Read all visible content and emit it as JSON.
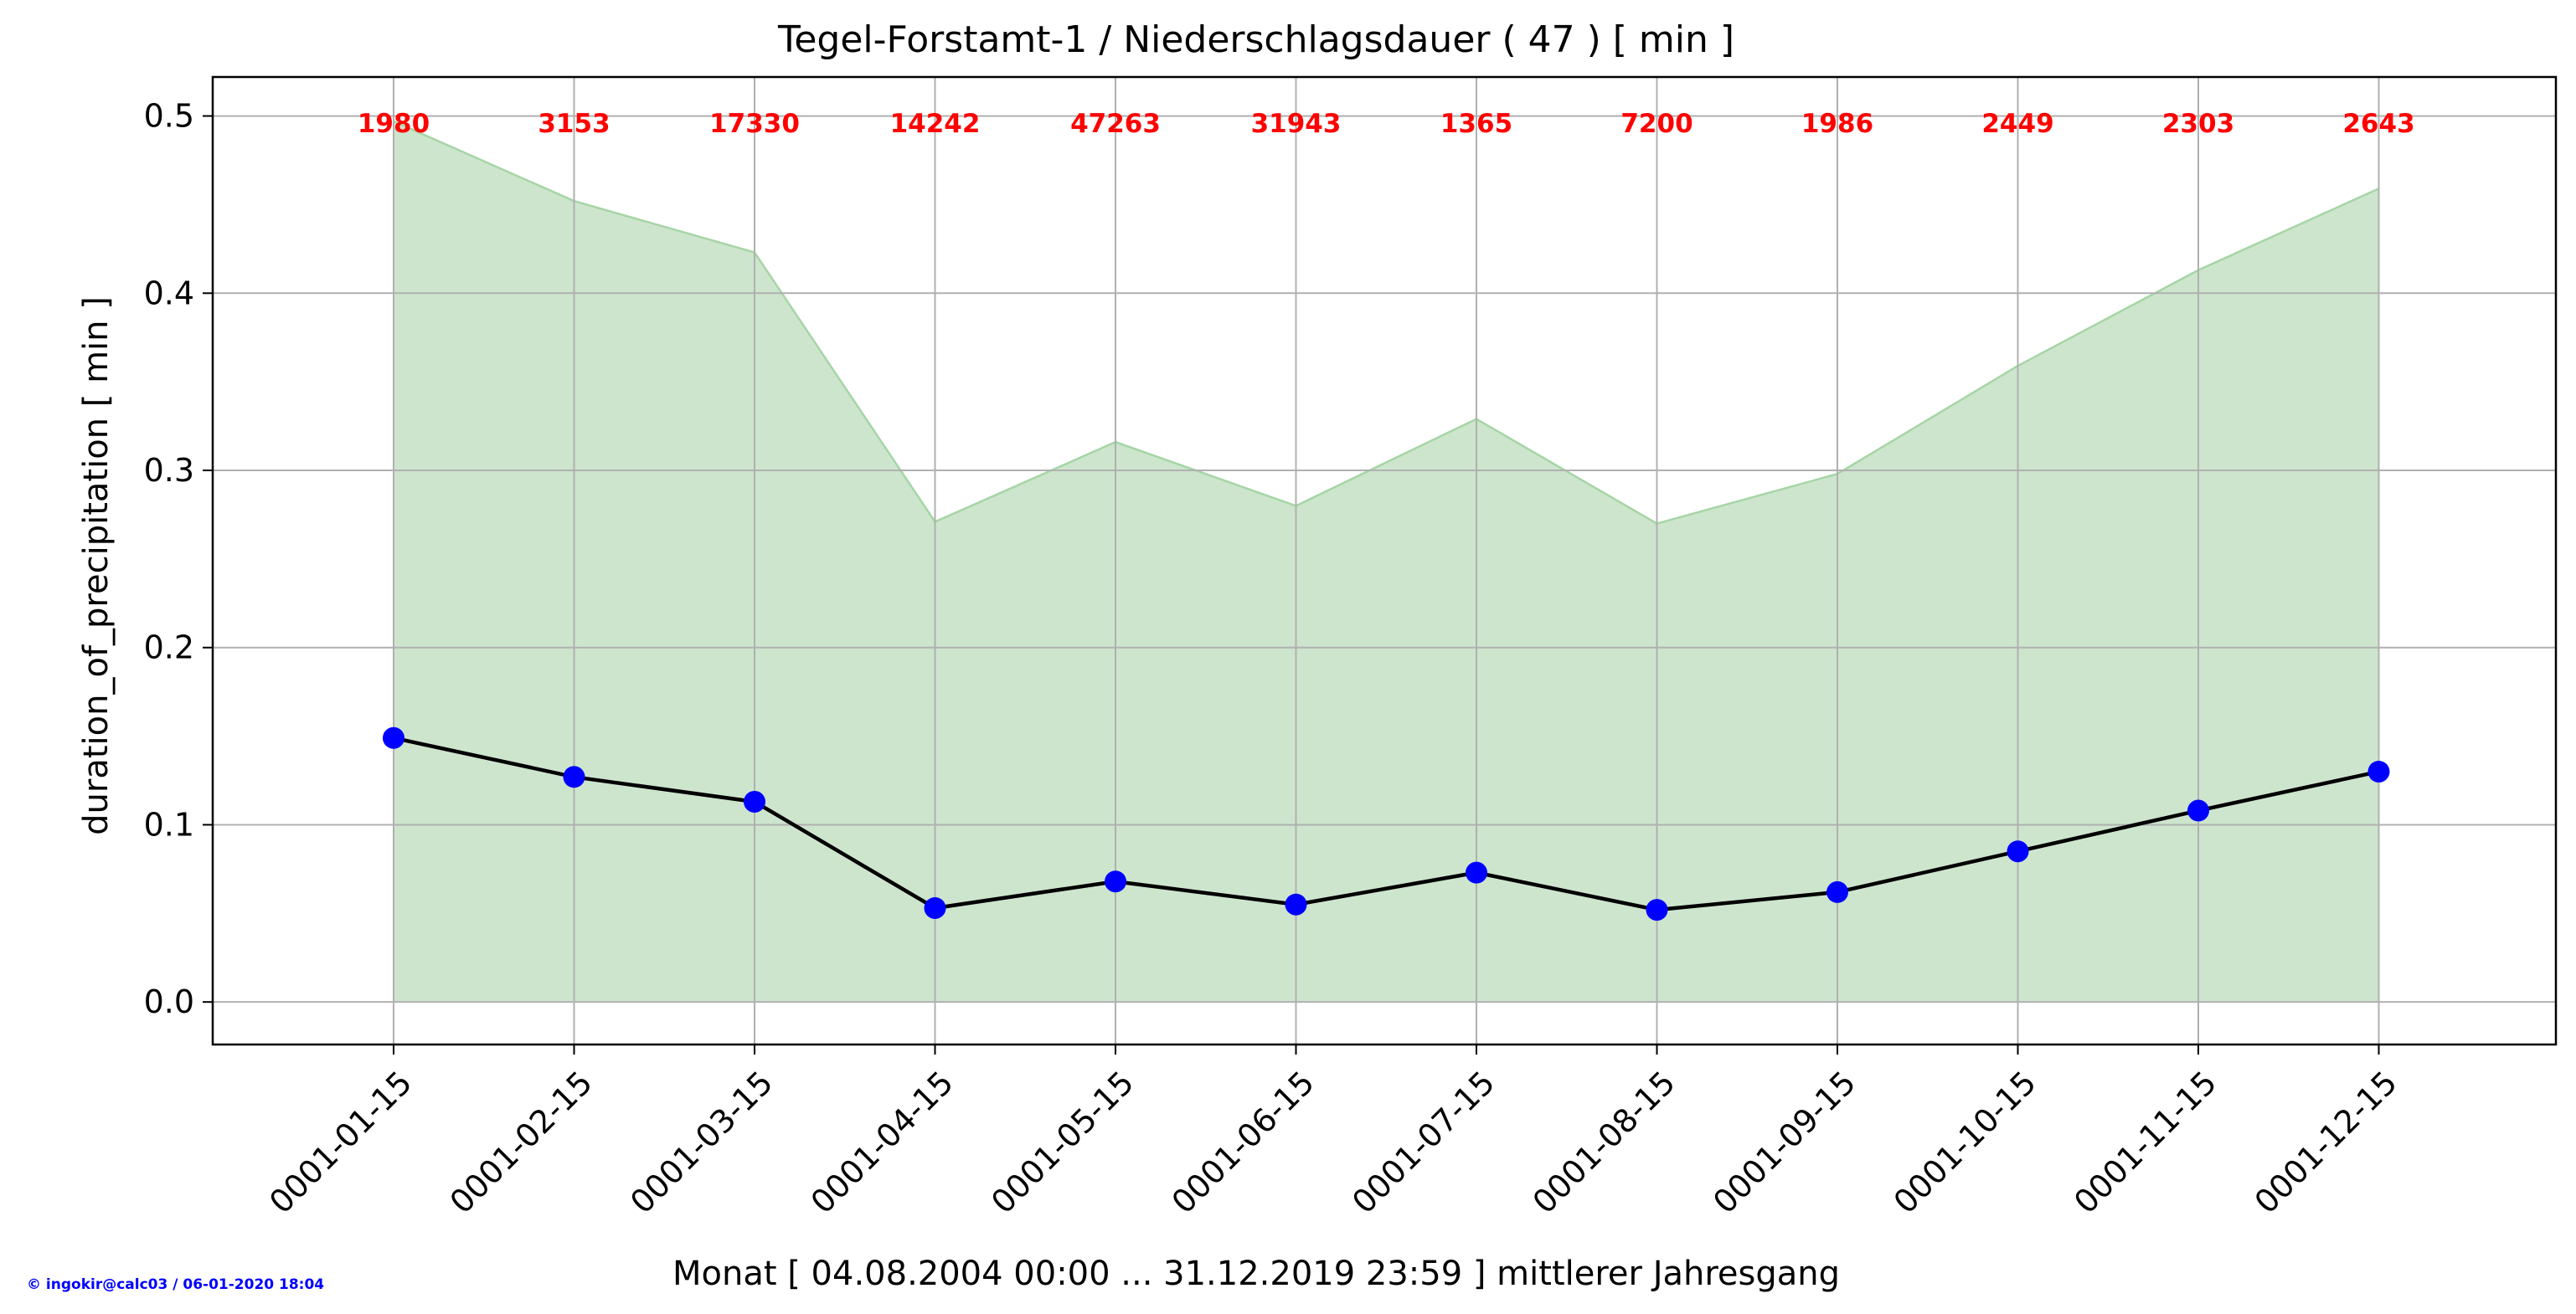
{
  "chart_data": {
    "type": "line",
    "title": "Tegel-Forstamt-1 / Niederschlagsdauer ( 47 ) [ min ]",
    "xlabel": "Monat [ 04.08.2004 00:00 ... 31.12.2019 23:59 ] mittlerer Jahresgang",
    "ylabel": "duration_of_precipitation [ min ]",
    "categories": [
      "0001-01-15",
      "0001-02-15",
      "0001-03-15",
      "0001-04-15",
      "0001-05-15",
      "0001-06-15",
      "0001-07-15",
      "0001-08-15",
      "0001-09-15",
      "0001-10-15",
      "0001-11-15",
      "0001-12-15"
    ],
    "series": [
      {
        "values": [
          0.149,
          0.127,
          0.113,
          0.053,
          0.068,
          0.055,
          0.073,
          0.052,
          0.062,
          0.085,
          0.108,
          0.13
        ]
      }
    ],
    "band": {
      "lower": [
        0,
        0,
        0,
        0,
        0,
        0,
        0,
        0,
        0,
        0,
        0,
        0
      ],
      "upper": [
        0.497,
        0.452,
        0.423,
        0.271,
        0.316,
        0.28,
        0.329,
        0.27,
        0.298,
        0.359,
        0.413,
        0.459
      ]
    },
    "counts": [
      "1980",
      "3153",
      "17330",
      "14242",
      "47263",
      "31943",
      "1365",
      "7200",
      "1986",
      "2449",
      "2303",
      "2643"
    ],
    "yticks": [
      "0.0",
      "0.1",
      "0.2",
      "0.3",
      "0.4",
      "0.5"
    ],
    "ylim": [
      -0.024,
      0.522
    ],
    "grid": true,
    "colors": {
      "line": "#000000",
      "marker": "#0000ff",
      "band_fill": "#cde5cd",
      "band_edge": "#a6d5a6",
      "counts": "#ff0000",
      "grid": "#b0b0b0"
    }
  },
  "footer": {
    "credit": "© ingokir@calc03 / 06-01-2020 18:04"
  }
}
